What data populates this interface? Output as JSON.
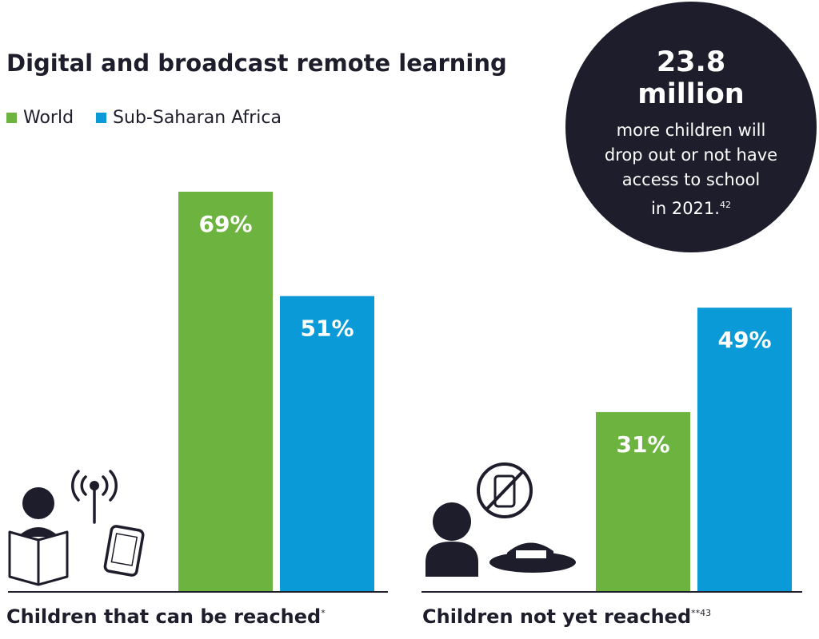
{
  "chart_data": {
    "type": "bar",
    "title": "Digital and broadcast remote learning",
    "categories": [
      "Children that can be reached",
      "Children not yet reached"
    ],
    "category_footnotes": [
      "*",
      "**43"
    ],
    "series": [
      {
        "name": "World",
        "values": [
          69,
          31
        ],
        "color": "#6db33f"
      },
      {
        "name": "Sub-Saharan Africa",
        "values": [
          51,
          49
        ],
        "color": "#0a9ad7"
      }
    ],
    "value_labels": [
      [
        "69%",
        "31%"
      ],
      [
        "51%",
        "49%"
      ]
    ],
    "unit": "%",
    "ylim": [
      0,
      100
    ],
    "legend_position": "top-left",
    "grid": false
  },
  "callout": {
    "figure": "23.8",
    "figure_unit": "million",
    "lines": [
      "more children will",
      "drop out or not have",
      "access to school",
      "in 2021."
    ],
    "footnote": "42"
  },
  "icons": {
    "reached": [
      "person-reading-icon",
      "broadcast-antenna-icon",
      "smartphone-icon"
    ],
    "not_reached": [
      "person-icon",
      "no-phone-icon",
      "house-icon"
    ]
  },
  "colors": {
    "dark": "#1e1d2b"
  }
}
